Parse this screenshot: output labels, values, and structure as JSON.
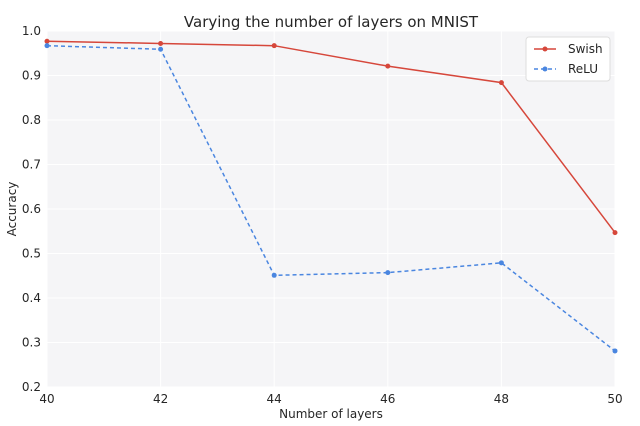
{
  "chart_data": {
    "type": "line",
    "title": "Varying the number of layers on MNIST",
    "xlabel": "Number of layers",
    "ylabel": "Accuracy",
    "x": [
      40,
      42,
      44,
      46,
      48,
      50
    ],
    "xlim": [
      40,
      50
    ],
    "ylim": [
      0.2,
      1.0
    ],
    "xticks": [
      "40",
      "42",
      "44",
      "46",
      "48",
      "50"
    ],
    "yticks": [
      "0.2",
      "0.3",
      "0.4",
      "0.5",
      "0.6",
      "0.7",
      "0.8",
      "0.9",
      "1.0"
    ],
    "grid": true,
    "legend_position": "top-right",
    "series": [
      {
        "name": "Swish",
        "values": [
          0.977,
          0.972,
          0.967,
          0.921,
          0.884,
          0.547
        ],
        "color": "#d6473b",
        "line_style": "solid"
      },
      {
        "name": "ReLU",
        "values": [
          0.967,
          0.959,
          0.451,
          0.457,
          0.479,
          0.281
        ],
        "color": "#4a86e0",
        "line_style": "dashed"
      }
    ]
  },
  "colors": {
    "plot_background": "#f5f5f7",
    "grid": "#ffffff"
  }
}
